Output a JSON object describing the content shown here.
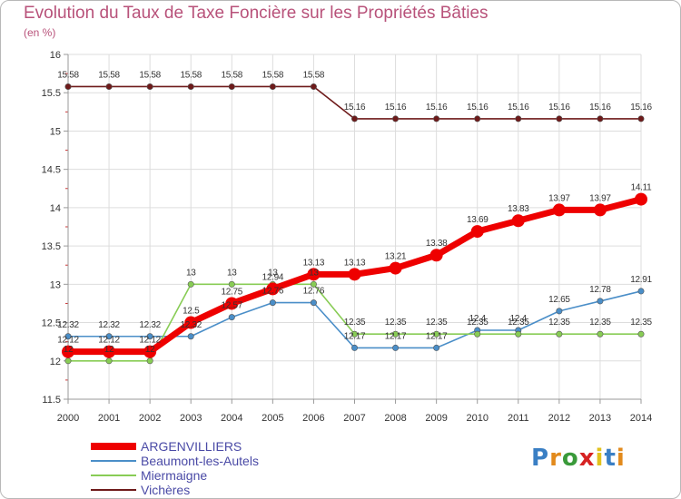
{
  "chart_data": {
    "type": "line",
    "title": "Evolution du Taux de Taxe Foncière sur les Propriétés Bâties",
    "ylabel": "(en %)",
    "xlabel": "",
    "ylim": [
      11.5,
      16
    ],
    "yticks": [
      "11.5",
      "12",
      "12.5",
      "13",
      "13.5",
      "14",
      "14.5",
      "15",
      "15.5",
      "16"
    ],
    "categories": [
      "2000",
      "2001",
      "2002",
      "2003",
      "2004",
      "2005",
      "2006",
      "2007",
      "2008",
      "2009",
      "2010",
      "2011",
      "2012",
      "2013",
      "2014"
    ],
    "series": [
      {
        "name": "ARGENVILLIERS",
        "color": "#ee0000",
        "values": [
          12.12,
          12.12,
          12.12,
          12.5,
          12.75,
          12.94,
          13.13,
          13.13,
          13.21,
          13.38,
          13.69,
          13.83,
          13.97,
          13.97,
          14.11
        ],
        "labels": [
          "12.12",
          "12.12",
          "12.12",
          "12.5",
          "12.75",
          "12.94",
          "13.13",
          "13.13",
          "13.21",
          "13.38",
          "13.69",
          "13.83",
          "13.97",
          "13.97",
          "14.11"
        ]
      },
      {
        "name": "Beaumont-les-Autels",
        "color": "#4a8ec8",
        "values": [
          12.32,
          12.32,
          12.32,
          12.32,
          12.57,
          12.76,
          12.76,
          12.17,
          12.17,
          12.17,
          12.4,
          12.4,
          12.65,
          12.78,
          12.91
        ],
        "labels": [
          "12.32",
          "12.32",
          "12.32",
          "12.32",
          "12.57",
          "12.76",
          "12.76",
          "12.17",
          "12.17",
          "12.17",
          "12.4",
          "12.4",
          "12.65",
          "12.78",
          "12.91"
        ]
      },
      {
        "name": "Miermaigne",
        "color": "#88cc55",
        "values": [
          12,
          12,
          12,
          13,
          13,
          13,
          13,
          12.35,
          12.35,
          12.35,
          12.35,
          12.35,
          12.35,
          12.35,
          12.35
        ],
        "labels": [
          "12",
          "12",
          "12",
          "13",
          "13",
          "13",
          "13",
          "12.35",
          "12.35",
          "12.35",
          "12.35",
          "12.35",
          "12.35",
          "12.35",
          "12.35"
        ]
      },
      {
        "name": "Vichères",
        "color": "#6e1a1a",
        "values": [
          15.58,
          15.58,
          15.58,
          15.58,
          15.58,
          15.58,
          15.58,
          15.16,
          15.16,
          15.16,
          15.16,
          15.16,
          15.16,
          15.16,
          15.16
        ],
        "labels": [
          "15.58",
          "15.58",
          "15.58",
          "15.58",
          "15.58",
          "15.58",
          "15.58",
          "15.16",
          "15.16",
          "15.16",
          "15.16",
          "15.16",
          "15.16",
          "15.16",
          "15.16"
        ]
      }
    ]
  },
  "logo": {
    "letters": [
      "P",
      "r",
      "o",
      "x",
      "i",
      "t",
      "i"
    ],
    "colors": [
      "#3a7fc4",
      "#e28a1c",
      "#3a9a3a",
      "#d62222",
      "#e2c21c",
      "#3a7fc4",
      "#e28a1c"
    ]
  }
}
